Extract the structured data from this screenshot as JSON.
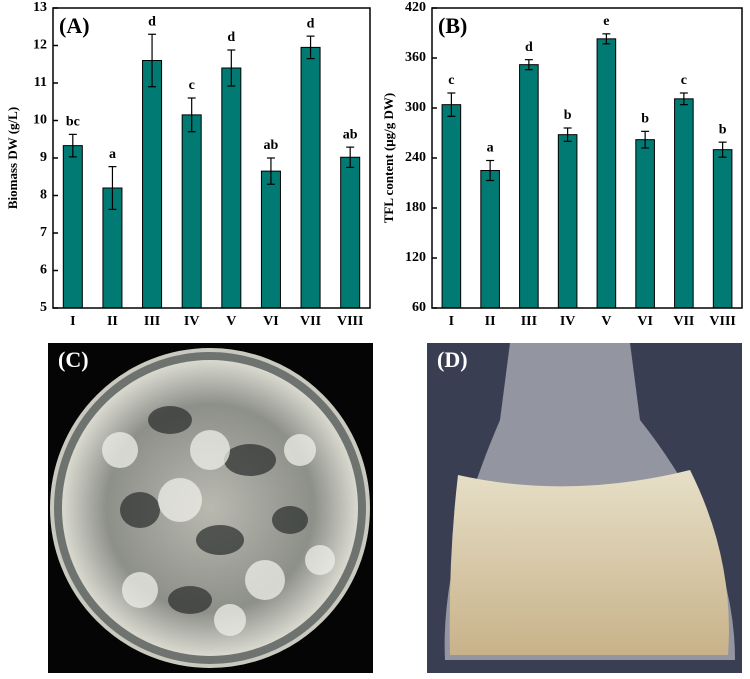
{
  "chart_data": [
    {
      "type": "bar",
      "panel_label": "(A)",
      "y_label": "Biomass DW (g/L)",
      "categories": [
        "I",
        "II",
        "III",
        "IV",
        "V",
        "VI",
        "VII",
        "VIII"
      ],
      "values": [
        9.33,
        8.2,
        11.6,
        10.15,
        11.4,
        8.65,
        11.95,
        9.02
      ],
      "errors": [
        0.3,
        0.57,
        0.7,
        0.45,
        0.48,
        0.35,
        0.3,
        0.27
      ],
      "annotations": [
        "bc",
        "a",
        "d",
        "c",
        "d",
        "ab",
        "d",
        "ab"
      ],
      "color": "#007a73",
      "ylim": [
        5,
        13
      ],
      "yticks": [
        5,
        6,
        7,
        8,
        9,
        10,
        11,
        12,
        13
      ]
    },
    {
      "type": "bar",
      "panel_label": "(B)",
      "y_label": "TFL content (μg/g DW)",
      "categories": [
        "I",
        "II",
        "III",
        "IV",
        "V",
        "VI",
        "VII",
        "VIII"
      ],
      "values": [
        304,
        225,
        352,
        268,
        383,
        262,
        311,
        250
      ],
      "errors": [
        14,
        12,
        6,
        8,
        6,
        10,
        7,
        9
      ],
      "annotations": [
        "c",
        "a",
        "d",
        "b",
        "e",
        "b",
        "c",
        "b"
      ],
      "color": "#007a73",
      "ylim": [
        60,
        420
      ],
      "yticks": [
        60,
        120,
        180,
        240,
        300,
        360,
        420
      ]
    }
  ],
  "photos": [
    {
      "label": "(C)"
    },
    {
      "label": "(D)"
    }
  ]
}
